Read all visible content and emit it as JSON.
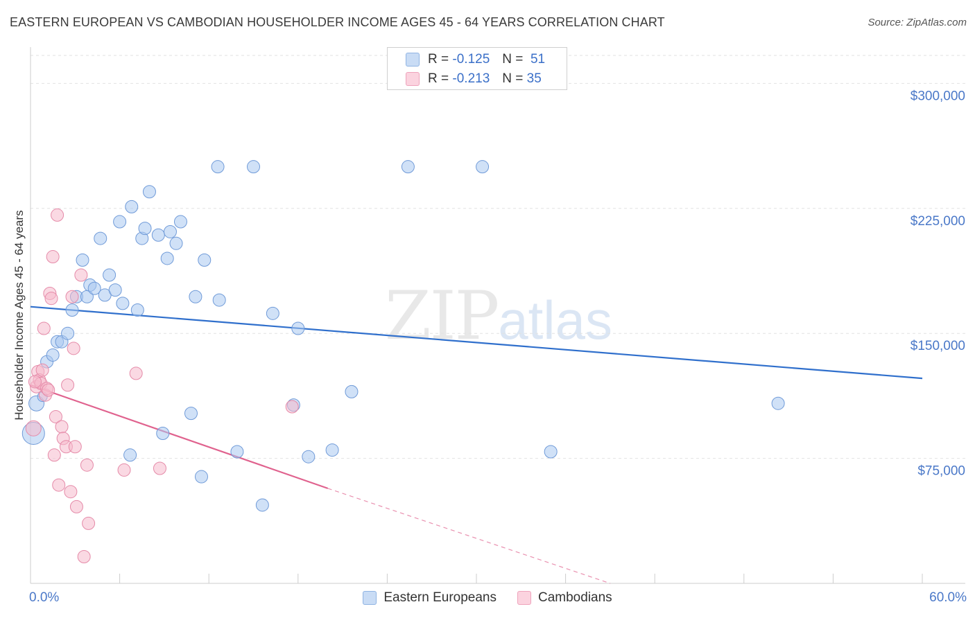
{
  "title": "EASTERN EUROPEAN VS CAMBODIAN HOUSEHOLDER INCOME AGES 45 - 64 YEARS CORRELATION CHART",
  "source": "Source: ZipAtlas.com",
  "watermark": {
    "zip": "ZIP",
    "atlas": "atlas"
  },
  "legend": {
    "r_label": "R =",
    "n_label": "N =",
    "rows": [
      {
        "r": "-0.125",
        "n": "51",
        "color": "#a9c8f0"
      },
      {
        "r": "-0.213",
        "n": "35",
        "color": "#f6b9cc"
      }
    ]
  },
  "bottom_legend": [
    "Eastern Europeans",
    "Cambodians"
  ],
  "x_tick_labels": {
    "left": "0.0%",
    "right": "60.0%"
  },
  "chart_data": {
    "type": "scatter",
    "xlabel": "",
    "ylabel": "Householder Income Ages 45 - 64 years",
    "xlim": [
      0,
      60
    ],
    "ylim": [
      0,
      300000
    ],
    "y_ticks": [
      {
        "value": 75000,
        "label": "$75,000"
      },
      {
        "value": 150000,
        "label": "$150,000"
      },
      {
        "value": 225000,
        "label": "$225,000"
      },
      {
        "value": 300000,
        "label": "$300,000"
      }
    ],
    "grid": true,
    "series": [
      {
        "name": "Eastern Europeans",
        "color": "#a9c8f0",
        "stroke": "#6f9ad8",
        "trend_color": "#2f6fcc",
        "trend": {
          "x0": 0,
          "y0": 166000,
          "x1": 60,
          "y1": 123000
        },
        "points": [
          [
            0.4,
            108000,
            11
          ],
          [
            0.8,
            112000,
            7
          ],
          [
            1.1,
            133000,
            9
          ],
          [
            1.5,
            137000,
            9
          ],
          [
            1.8,
            145000,
            9
          ],
          [
            2.1,
            145000,
            9
          ],
          [
            2.5,
            150000,
            9
          ],
          [
            2.8,
            164000,
            9
          ],
          [
            3.1,
            172000,
            9
          ],
          [
            3.5,
            194000,
            9
          ],
          [
            3.8,
            172000,
            9
          ],
          [
            4.0,
            179000,
            9
          ],
          [
            4.3,
            177000,
            9
          ],
          [
            4.7,
            207000,
            9
          ],
          [
            5.0,
            173000,
            9
          ],
          [
            5.3,
            185000,
            9
          ],
          [
            5.7,
            176000,
            9
          ],
          [
            6.0,
            217000,
            9
          ],
          [
            6.2,
            168000,
            9
          ],
          [
            6.8,
            226000,
            9
          ],
          [
            7.2,
            164000,
            9
          ],
          [
            7.5,
            207000,
            9
          ],
          [
            7.7,
            213000,
            9
          ],
          [
            8.0,
            235000,
            9
          ],
          [
            8.6,
            209000,
            9
          ],
          [
            9.2,
            195000,
            9
          ],
          [
            9.4,
            211000,
            9
          ],
          [
            9.8,
            204000,
            9
          ],
          [
            10.1,
            217000,
            9
          ],
          [
            10.8,
            102000,
            9
          ],
          [
            11.1,
            172000,
            9
          ],
          [
            11.7,
            194000,
            9
          ],
          [
            12.6,
            250000,
            9
          ],
          [
            12.7,
            170000,
            9
          ],
          [
            15.0,
            250000,
            9
          ],
          [
            16.3,
            162000,
            9
          ],
          [
            17.7,
            107000,
            9
          ],
          [
            18.0,
            153000,
            9
          ],
          [
            20.3,
            80000,
            9
          ],
          [
            21.6,
            115000,
            9
          ],
          [
            25.4,
            250000,
            9
          ],
          [
            30.4,
            250000,
            9
          ],
          [
            35.0,
            79000,
            9
          ],
          [
            50.3,
            108000,
            9
          ],
          [
            0.2,
            90000,
            16
          ],
          [
            6.7,
            77000,
            9
          ],
          [
            8.9,
            90000,
            9
          ],
          [
            11.5,
            64000,
            9
          ],
          [
            13.9,
            79000,
            9
          ],
          [
            15.6,
            47000,
            9
          ],
          [
            18.7,
            76000,
            9
          ]
        ]
      },
      {
        "name": "Cambodians",
        "color": "#f6b9cc",
        "stroke": "#e58aa8",
        "trend_color": "#e0628e",
        "trend": {
          "x0": 0,
          "y0": 119000,
          "x1": 20,
          "y1": 57000
        },
        "trend_dash": {
          "x0": 20,
          "y0": 57000,
          "x1": 39,
          "y1": 0
        },
        "points": [
          [
            0.2,
            93000,
            11
          ],
          [
            0.4,
            118000,
            9
          ],
          [
            0.5,
            127000,
            9
          ],
          [
            0.6,
            122000,
            9
          ],
          [
            0.7,
            120000,
            9
          ],
          [
            0.8,
            128000,
            9
          ],
          [
            0.9,
            153000,
            9
          ],
          [
            1.0,
            113000,
            9
          ],
          [
            1.1,
            117000,
            9
          ],
          [
            1.2,
            116000,
            9
          ],
          [
            1.3,
            174000,
            9
          ],
          [
            1.4,
            171000,
            9
          ],
          [
            1.5,
            196000,
            9
          ],
          [
            1.6,
            77000,
            9
          ],
          [
            1.7,
            100000,
            9
          ],
          [
            1.8,
            221000,
            9
          ],
          [
            1.9,
            59000,
            9
          ],
          [
            2.1,
            94000,
            9
          ],
          [
            2.2,
            87000,
            9
          ],
          [
            2.4,
            82000,
            9
          ],
          [
            2.5,
            119000,
            9
          ],
          [
            2.7,
            55000,
            9
          ],
          [
            2.8,
            172000,
            9
          ],
          [
            2.9,
            141000,
            9
          ],
          [
            3.0,
            82000,
            9
          ],
          [
            3.1,
            46000,
            9
          ],
          [
            3.4,
            185000,
            9
          ],
          [
            3.6,
            16000,
            9
          ],
          [
            3.8,
            71000,
            9
          ],
          [
            3.9,
            36000,
            9
          ],
          [
            6.3,
            68000,
            9
          ],
          [
            7.1,
            126000,
            9
          ],
          [
            8.7,
            69000,
            9
          ],
          [
            17.6,
            106000,
            9
          ],
          [
            0.3,
            121000,
            9
          ]
        ]
      }
    ]
  }
}
